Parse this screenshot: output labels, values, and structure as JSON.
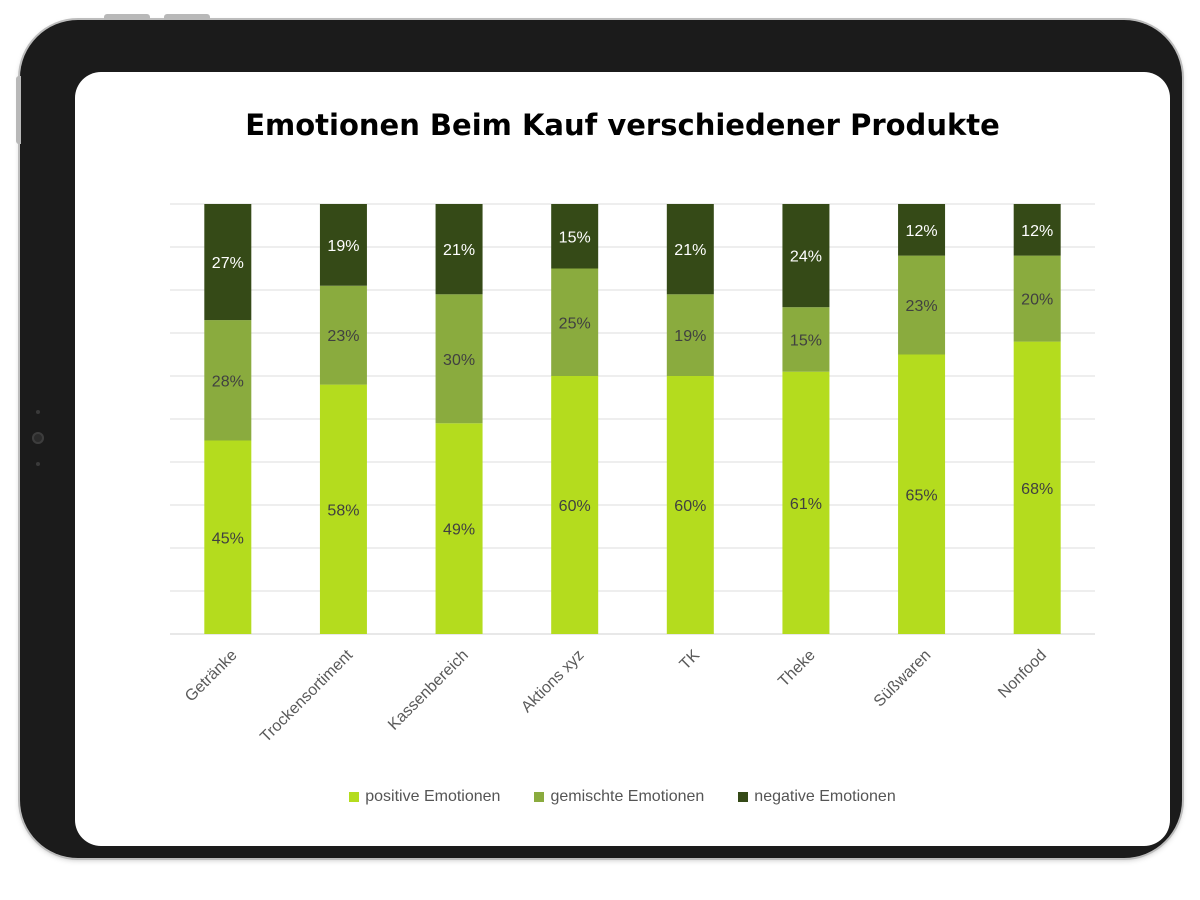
{
  "chart_data": {
    "type": "bar",
    "stacked": true,
    "title": "Emotionen Beim Kauf verschiedener Produkte",
    "xlabel": "",
    "ylabel": "",
    "ylim": [
      0,
      100
    ],
    "grid": true,
    "legend_position": "bottom",
    "categories": [
      "Getränke",
      "Trockensortiment",
      "Kassenbereich",
      "Aktions xyz",
      "TK",
      "Theke",
      "Süßwaren",
      "Nonfood"
    ],
    "series": [
      {
        "name": "positive Emotionen",
        "color": "#b4dc1e",
        "values": [
          45,
          58,
          49,
          60,
          60,
          61,
          65,
          68
        ],
        "labels": [
          "45%",
          "58%",
          "49%",
          "60%",
          "60%",
          "61%",
          "65%",
          "68%"
        ]
      },
      {
        "name": "gemischte Emotionen",
        "color": "#8aab3e",
        "values": [
          28,
          23,
          30,
          25,
          19,
          15,
          23,
          20
        ],
        "labels": [
          "28%",
          "23%",
          "30%",
          "25%",
          "19%",
          "15%",
          "23%",
          "20%"
        ]
      },
      {
        "name": "negative Emotionen",
        "color": "#354a17",
        "values": [
          27,
          19,
          21,
          15,
          21,
          24,
          12,
          12
        ],
        "labels": [
          "27%",
          "19%",
          "21%",
          "15%",
          "21%",
          "24%",
          "12%",
          "12%"
        ]
      }
    ]
  }
}
